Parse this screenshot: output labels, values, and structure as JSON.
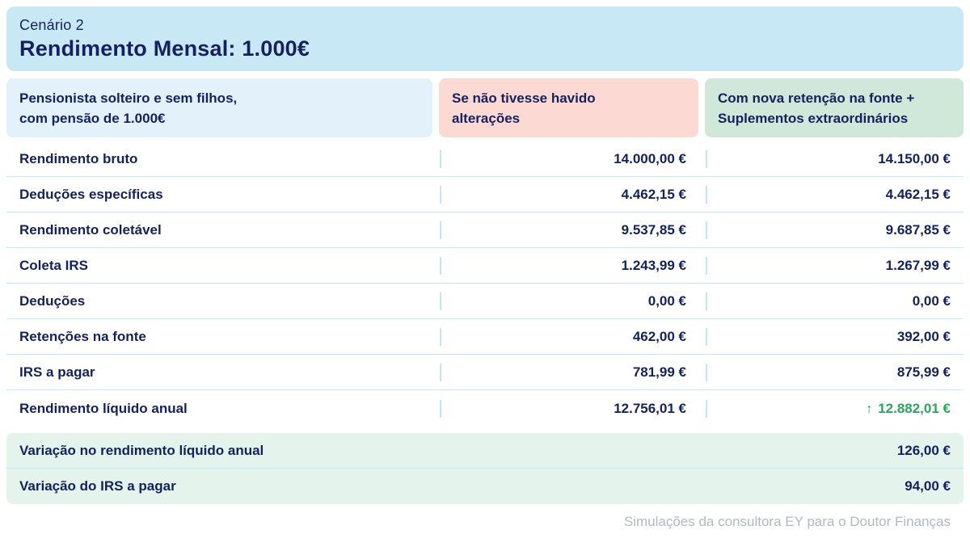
{
  "chart_data": {
    "type": "table",
    "scenario_label": "Cenário 2",
    "title": "Rendimento Mensal: 1.000€",
    "column_headers": {
      "profile": {
        "line1": "Pensionista solteiro e sem filhos,",
        "line2": "com pensão de 1.000€"
      },
      "no_changes": {
        "line1": "Se não tivesse havido",
        "line2": "alterações"
      },
      "new_retention": {
        "line1": "Com nova retenção na fonte +",
        "line2": "Suplementos extraordinários"
      }
    },
    "rows": [
      {
        "label": "Rendimento bruto",
        "no_changes": "14.000,00 €",
        "new_retention": "14.150,00 €"
      },
      {
        "label": "Deduções específicas",
        "no_changes": "4.462,15 €",
        "new_retention": "4.462,15 €"
      },
      {
        "label": "Rendimento coletável",
        "no_changes": "9.537,85 €",
        "new_retention": "9.687,85 €"
      },
      {
        "label": "Coleta IRS",
        "no_changes": "1.243,99 €",
        "new_retention": "1.267,99 €"
      },
      {
        "label": "Deduções",
        "no_changes": "0,00 €",
        "new_retention": "0,00 €"
      },
      {
        "label": "Retenções na fonte",
        "no_changes": "462,00 €",
        "new_retention": "392,00 €"
      },
      {
        "label": "IRS a pagar",
        "no_changes": "781,99 €",
        "new_retention": "875,99 €"
      },
      {
        "label": "Rendimento líquido anual",
        "no_changes": "12.756,01 €",
        "new_retention": "12.882,01 €"
      }
    ],
    "highlight": {
      "row_label": "Rendimento líquido anual",
      "column": "new_retention",
      "indicator": "↑",
      "meaning": "increase"
    },
    "summary_rows": [
      {
        "label": "Variação no rendimento líquido anual",
        "value": "126,00 €"
      },
      {
        "label": "Variação do IRS a pagar",
        "value": "94,00 €"
      }
    ],
    "source_note": "Simulações da consultora EY para o Doutor Finanças"
  },
  "colors": {
    "navy_text": "#15215e",
    "banner_blue": "#c9e8f6",
    "profile_blue": "#e2f1fa",
    "no_changes_pink": "#fcd9d3",
    "new_retention_green": "#cfe8d9",
    "summary_green": "#e4f3eb",
    "separator_blue": "#c2e6f4",
    "accent_green": "#29a65c",
    "footer_gray": "#b2b9c0"
  }
}
